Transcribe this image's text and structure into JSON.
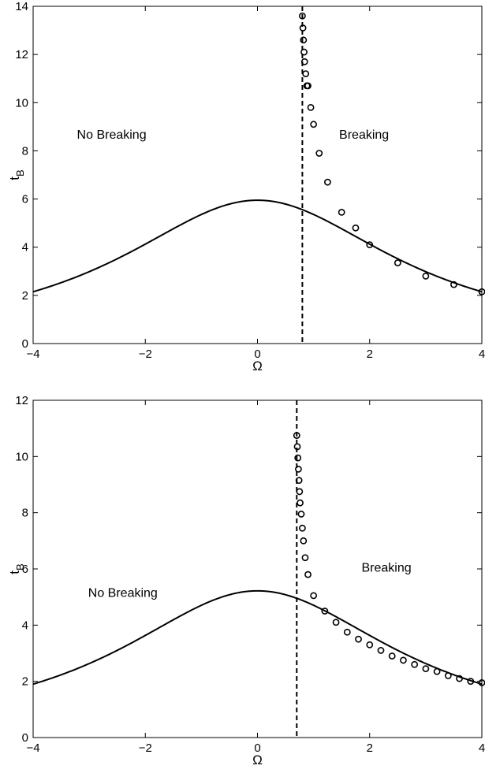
{
  "chart_data": [
    {
      "type": "line",
      "xlabel": "Ω",
      "ylabel": "t",
      "ylabel_sub": "B",
      "xlim": [
        -4,
        4
      ],
      "ylim": [
        0,
        14
      ],
      "xticks": [
        "−4",
        "−2",
        "0",
        "2",
        "4"
      ],
      "yticks": [
        "0",
        "2",
        "4",
        "6",
        "8",
        "10",
        "12",
        "14"
      ],
      "xtick_values": [
        -4,
        -2,
        0,
        2,
        4
      ],
      "ytick_values": [
        0,
        2,
        4,
        6,
        8,
        10,
        12,
        14
      ],
      "grid": false,
      "curve_peak": 5.95,
      "threshold_x": 0.8,
      "annotations": [
        {
          "text": "No Breaking",
          "x": -2.6,
          "y": 8.5
        },
        {
          "text": "Breaking",
          "x": 1.9,
          "y": 8.5
        }
      ],
      "markers": {
        "x": [
          0.8,
          0.81,
          0.82,
          0.83,
          0.84,
          0.86,
          0.88,
          0.9,
          0.95,
          1.0,
          1.1,
          1.25,
          1.5,
          1.75,
          2.0,
          2.5,
          3.0,
          3.5,
          4.0
        ],
        "y": [
          13.6,
          13.1,
          12.6,
          12.1,
          11.7,
          11.2,
          10.7,
          10.7,
          9.8,
          9.1,
          7.9,
          6.7,
          5.45,
          4.8,
          4.1,
          3.35,
          2.8,
          2.45,
          2.15
        ]
      }
    },
    {
      "type": "line",
      "xlabel": "Ω",
      "ylabel": "t",
      "ylabel_sub": "B",
      "xlim": [
        -4,
        4
      ],
      "ylim": [
        0,
        12
      ],
      "xticks": [
        "−4",
        "−2",
        "0",
        "2",
        "4"
      ],
      "yticks": [
        "0",
        "2",
        "4",
        "6",
        "8",
        "10",
        "12"
      ],
      "xtick_values": [
        -4,
        -2,
        0,
        2,
        4
      ],
      "ytick_values": [
        0,
        2,
        4,
        6,
        8,
        10,
        12
      ],
      "grid": false,
      "curve_peak": 5.22,
      "threshold_x": 0.7,
      "annotations": [
        {
          "text": "No Breaking",
          "x": -2.4,
          "y": 5.0
        },
        {
          "text": "Breaking",
          "x": 2.3,
          "y": 5.9
        }
      ],
      "markers": {
        "x": [
          0.7,
          0.71,
          0.72,
          0.73,
          0.74,
          0.75,
          0.76,
          0.78,
          0.8,
          0.82,
          0.85,
          0.9,
          1.0,
          1.2,
          1.4,
          1.6,
          1.8,
          2.0,
          2.2,
          2.4,
          2.6,
          2.8,
          3.0,
          3.2,
          3.4,
          3.6,
          3.8,
          4.0
        ],
        "y": [
          10.75,
          10.35,
          9.95,
          9.55,
          9.15,
          8.75,
          8.35,
          7.95,
          7.45,
          7.0,
          6.4,
          5.8,
          5.05,
          4.5,
          4.1,
          3.75,
          3.5,
          3.3,
          3.1,
          2.9,
          2.75,
          2.6,
          2.45,
          2.35,
          2.2,
          2.1,
          2.0,
          1.95
        ]
      }
    }
  ]
}
